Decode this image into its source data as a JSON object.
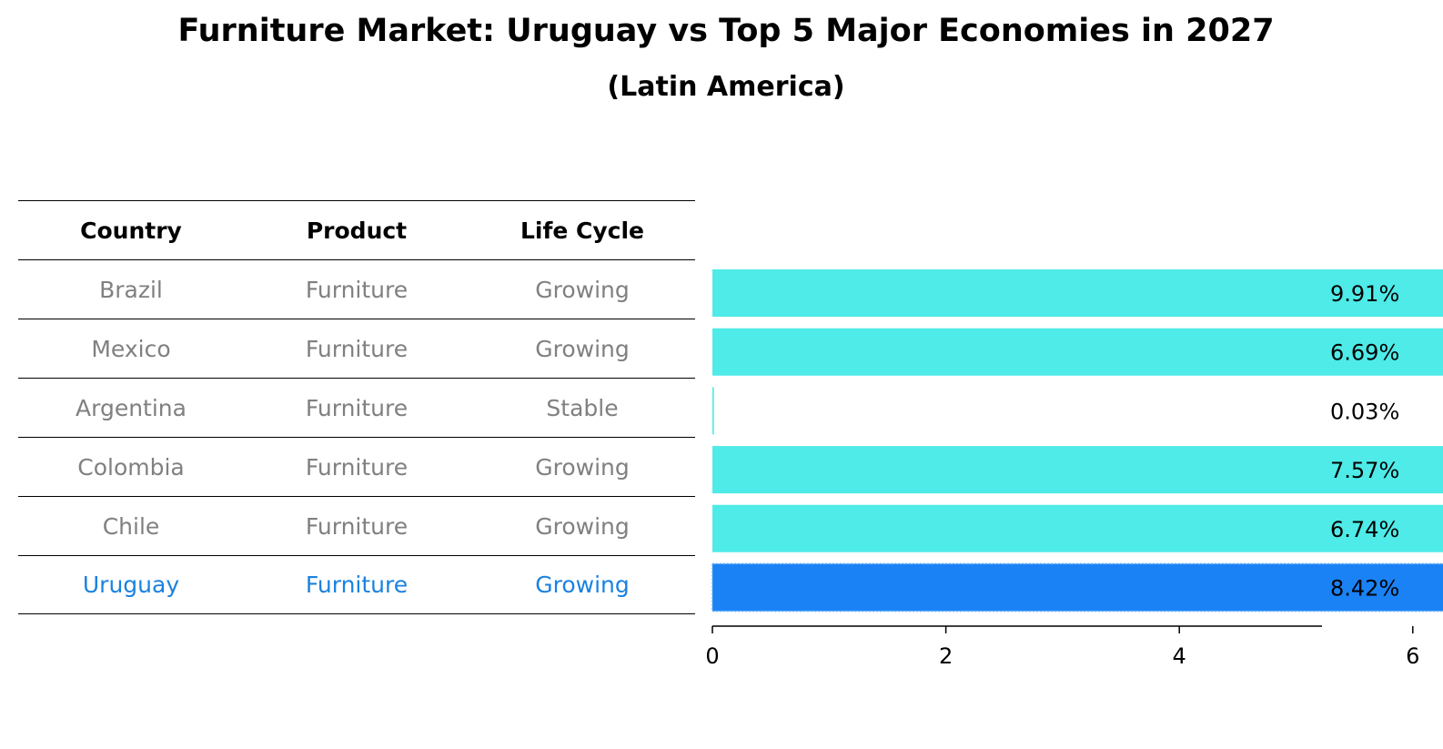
{
  "title": "Furniture Market: Uruguay vs Top 5 Major Economies in 2027",
  "subtitle": "(Latin America)",
  "table": {
    "headers": [
      "Country",
      "Product",
      "Life Cycle"
    ],
    "rows": [
      [
        "Brazil",
        "Furniture",
        "Growing"
      ],
      [
        "Mexico",
        "Furniture",
        "Growing"
      ],
      [
        "Argentina",
        "Furniture",
        "Stable"
      ],
      [
        "Colombia",
        "Furniture",
        "Growing"
      ],
      [
        "Chile",
        "Furniture",
        "Growing"
      ],
      [
        "Uruguay",
        "Furniture",
        "Growing"
      ]
    ]
  },
  "colors": {
    "bar": "#4EEBE8",
    "highlight": "#1A82F5",
    "highlight_text": "#1A82E0",
    "muted_text": "#808080"
  },
  "chart_data": {
    "type": "bar",
    "orientation": "horizontal",
    "categories": [
      "Brazil",
      "Mexico",
      "Argentina",
      "Colombia",
      "Chile",
      "Uruguay"
    ],
    "values": [
      9.91,
      6.69,
      0.03,
      7.57,
      6.74,
      8.42
    ],
    "data_labels": [
      "9.91%",
      "6.69%",
      "0.03%",
      "7.57%",
      "6.74%",
      "8.42%"
    ],
    "highlight": "Uruguay",
    "xlim": [
      0,
      10.45
    ],
    "xticks": [
      "0",
      "2",
      "4",
      "6",
      "8",
      "10"
    ],
    "grid": false
  }
}
